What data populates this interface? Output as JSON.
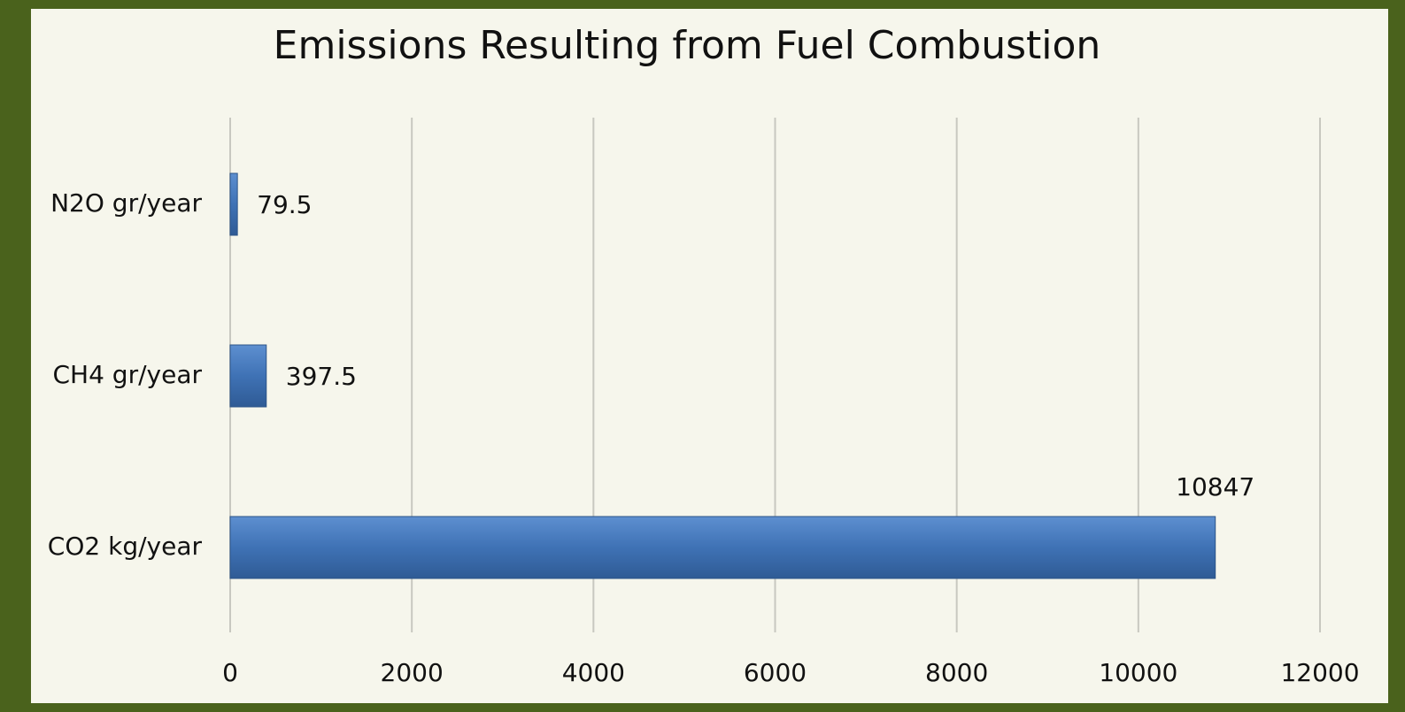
{
  "chart_data": {
    "type": "bar",
    "orientation": "horizontal",
    "title": "Emissions Resulting from Fuel Combustion",
    "categories": [
      "N2O gr/year",
      "CH4 gr/year",
      "CO2 kg/year"
    ],
    "values": [
      79.5,
      397.5,
      10847
    ],
    "color": "#3f72b5",
    "xlim": [
      0,
      12000
    ],
    "xticks": [
      0,
      2000,
      4000,
      6000,
      8000,
      10000,
      12000
    ],
    "grid": true
  }
}
